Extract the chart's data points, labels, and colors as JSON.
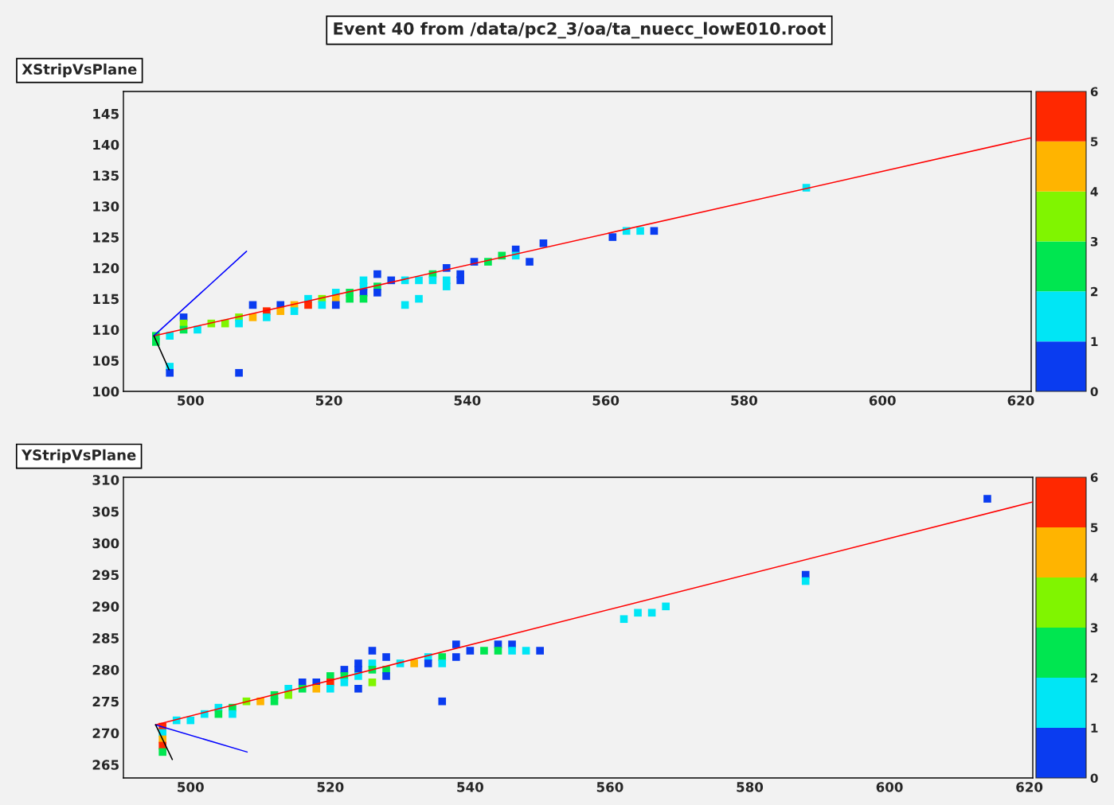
{
  "chart_data": [
    {
      "type": "scatter",
      "title": "XStripVsPlane",
      "annotations": [
        "Event 40 from /data/pc2_3/oa/ta_nuecc_lowE010.root"
      ],
      "xlim": [
        490.3,
        621.5
      ],
      "ylim": [
        100,
        148.6
      ],
      "xticks": [
        500,
        520,
        540,
        560,
        580,
        600,
        620
      ],
      "yticks": [
        100,
        105,
        110,
        115,
        120,
        125,
        130,
        135,
        140,
        145
      ],
      "clim": [
        0,
        6
      ],
      "cticks": [
        0,
        1,
        2,
        3,
        4,
        5,
        6
      ],
      "grid": false,
      "legend": false,
      "series": [
        {
          "type": "scatter",
          "marker": "square",
          "x": [
            495,
            495,
            497,
            497,
            497,
            499,
            499,
            499,
            501,
            503,
            505,
            507,
            507,
            507,
            509,
            509,
            511,
            511,
            513,
            513,
            515,
            515,
            517,
            517,
            519,
            519,
            521,
            521,
            521,
            523,
            523,
            525,
            525,
            525,
            525,
            527,
            527,
            527,
            529,
            531,
            531,
            533,
            533,
            535,
            535,
            537,
            537,
            537,
            539,
            539,
            541,
            543,
            545,
            547,
            547,
            549,
            551,
            561,
            563,
            565,
            567,
            589
          ],
          "values": [
            109,
            108,
            109,
            104,
            103,
            112,
            111,
            110,
            110,
            111,
            111,
            112,
            111,
            103,
            114,
            112,
            113,
            112,
            114,
            113,
            114,
            113,
            115,
            114,
            115,
            114,
            116,
            115,
            114,
            116,
            115,
            118,
            117,
            116,
            115,
            119,
            117,
            116,
            118,
            118,
            114,
            118,
            115,
            119,
            118,
            120,
            118,
            117,
            119,
            118,
            121,
            121,
            122,
            123,
            122,
            121,
            124,
            125,
            126,
            126,
            126,
            133
          ],
          "colors": [
            "#00e650",
            "#00e650",
            "#00e6f5",
            "#00e6f5",
            "#0a3cf0",
            "#0a3cf0",
            "#80f500",
            "#00e650",
            "#00e6f5",
            "#80f500",
            "#80f500",
            "#80f500",
            "#00e6f5",
            "#0a3cf0",
            "#0a3cf0",
            "#ffb400",
            "#ff2800",
            "#00e6f5",
            "#0a3cf0",
            "#ffb400",
            "#ffb400",
            "#00e6f5",
            "#00e6f5",
            "#ff2800",
            "#80f500",
            "#00e6f5",
            "#00e6f5",
            "#ffb400",
            "#0a3cf0",
            "#00e650",
            "#00e650",
            "#00e6f5",
            "#00e6f5",
            "#0a3cf0",
            "#00e650",
            "#0a3cf0",
            "#00e650",
            "#0a3cf0",
            "#0a3cf0",
            "#00e6f5",
            "#00e6f5",
            "#00e6f5",
            "#00e6f5",
            "#00e650",
            "#00e6f5",
            "#0a3cf0",
            "#00e6f5",
            "#00e6f5",
            "#0a3cf0",
            "#0a3cf0",
            "#0a3cf0",
            "#00e650",
            "#00e650",
            "#0a3cf0",
            "#00e6f5",
            "#0a3cf0",
            "#0a3cf0",
            "#0a3cf0",
            "#00e6f5",
            "#00e6f5",
            "#0a3cf0",
            "#00e6f5"
          ]
        },
        {
          "type": "line",
          "color": "#ff0000",
          "x": [
            494.7,
            621.5
          ],
          "values": [
            109,
            141.1
          ]
        },
        {
          "type": "line",
          "color": "#0000ff",
          "x": [
            494.7,
            508.1
          ],
          "values": [
            109,
            122.7
          ]
        },
        {
          "type": "line",
          "color": "#000000",
          "x": [
            494.7,
            496.9
          ],
          "values": [
            109,
            103.5
          ]
        }
      ]
    },
    {
      "type": "scatter",
      "title": "YStripVsPlane",
      "xlim": [
        490.4,
        620.5
      ],
      "ylim": [
        262.9,
        310.4
      ],
      "xticks": [
        500,
        520,
        540,
        560,
        580,
        600,
        620
      ],
      "yticks": [
        265,
        270,
        275,
        280,
        285,
        290,
        295,
        300,
        305,
        310
      ],
      "clim": [
        0,
        6
      ],
      "cticks": [
        0,
        1,
        2,
        3,
        4,
        5,
        6
      ],
      "grid": false,
      "legend": false,
      "series": [
        {
          "type": "scatter",
          "marker": "square",
          "x": [
            496,
            496,
            496,
            496,
            496,
            498,
            500,
            502,
            504,
            504,
            506,
            506,
            508,
            510,
            512,
            512,
            514,
            514,
            516,
            516,
            518,
            518,
            520,
            520,
            520,
            522,
            522,
            522,
            524,
            524,
            524,
            524,
            526,
            526,
            526,
            526,
            528,
            528,
            528,
            530,
            532,
            534,
            534,
            536,
            536,
            536,
            538,
            538,
            540,
            542,
            544,
            544,
            546,
            546,
            548,
            550,
            562,
            564,
            566,
            568,
            588,
            588,
            614
          ],
          "values": [
            271,
            270,
            269,
            268,
            267,
            272,
            272,
            273,
            274,
            273,
            274,
            273,
            275,
            275,
            276,
            275,
            277,
            276,
            278,
            277,
            278,
            277,
            279,
            278,
            277,
            280,
            279,
            278,
            281,
            280,
            279,
            277,
            283,
            281,
            280,
            278,
            282,
            280,
            279,
            281,
            281,
            282,
            281,
            282,
            281,
            275,
            284,
            282,
            283,
            283,
            284,
            283,
            284,
            283,
            283,
            283,
            288,
            289,
            289,
            290,
            295,
            294,
            307
          ],
          "colors": [
            "#ff2800",
            "#00e6f5",
            "#ffb400",
            "#ff2800",
            "#00e650",
            "#00e6f5",
            "#00e6f5",
            "#00e6f5",
            "#00e6f5",
            "#00e650",
            "#00e650",
            "#00e6f5",
            "#80f500",
            "#ffb400",
            "#00e650",
            "#00e650",
            "#00e6f5",
            "#80f500",
            "#0a3cf0",
            "#00e650",
            "#0a3cf0",
            "#ffb400",
            "#00e650",
            "#ff2800",
            "#00e6f5",
            "#0a3cf0",
            "#00e650",
            "#00e6f5",
            "#0a3cf0",
            "#0a3cf0",
            "#00e6f5",
            "#0a3cf0",
            "#0a3cf0",
            "#00e6f5",
            "#00e650",
            "#80f500",
            "#0a3cf0",
            "#00e650",
            "#0a3cf0",
            "#00e6f5",
            "#ffb400",
            "#00e6f5",
            "#0a3cf0",
            "#00e650",
            "#00e6f5",
            "#0a3cf0",
            "#0a3cf0",
            "#0a3cf0",
            "#0a3cf0",
            "#00e650",
            "#0a3cf0",
            "#00e650",
            "#0a3cf0",
            "#00e6f5",
            "#00e6f5",
            "#0a3cf0",
            "#00e6f5",
            "#00e6f5",
            "#00e6f5",
            "#00e6f5",
            "#0a3cf0",
            "#00e6f5",
            "#0a3cf0"
          ]
        },
        {
          "type": "line",
          "color": "#ff0000",
          "x": [
            495,
            620.5
          ],
          "values": [
            271.3,
            306.5
          ]
        },
        {
          "type": "line",
          "color": "#0000ff",
          "x": [
            495,
            508.1
          ],
          "values": [
            271.3,
            267.0
          ]
        },
        {
          "type": "line",
          "color": "#000000",
          "x": [
            495,
            497.4
          ],
          "values": [
            271.3,
            265.8
          ]
        }
      ]
    }
  ]
}
